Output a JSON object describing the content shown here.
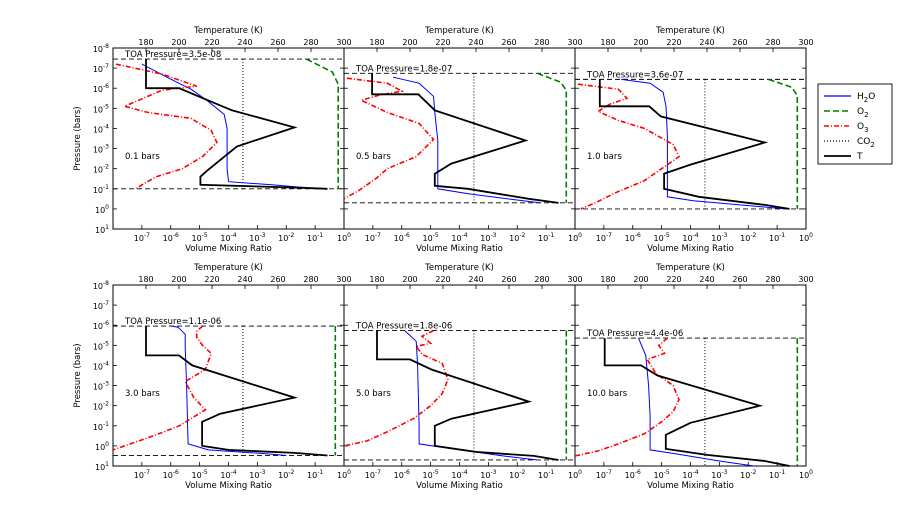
{
  "chart_data": {
    "type": "line",
    "common": {
      "ylabel": "Pressure (bars)",
      "xlabel_bottom": "Volume Mixing Ratio",
      "xlabel_top": "Temperature (K)",
      "y_axis_log": true,
      "y_axis_inverted": true,
      "ylim_log10": [
        -8,
        1
      ],
      "y_ticks": [
        {
          "base": "10",
          "exp": "-8"
        },
        {
          "base": "10",
          "exp": "-7"
        },
        {
          "base": "10",
          "exp": "-6"
        },
        {
          "base": "10",
          "exp": "-5"
        },
        {
          "base": "10",
          "exp": "-4"
        },
        {
          "base": "10",
          "exp": "-3"
        },
        {
          "base": "10",
          "exp": "-2"
        },
        {
          "base": "10",
          "exp": "-1"
        },
        {
          "base": "10",
          "exp": "0"
        },
        {
          "base": "10",
          "exp": "1"
        }
      ],
      "bottom_axis_log": true,
      "xlim_bottom_log10": [
        -8,
        0
      ],
      "x_bottom_ticks": [
        {
          "val": -7,
          "base": "10",
          "exp": "-7"
        },
        {
          "val": -6,
          "base": "10",
          "exp": "-6"
        },
        {
          "val": -5,
          "base": "10",
          "exp": "-5"
        },
        {
          "val": -4,
          "base": "10",
          "exp": "-4"
        },
        {
          "val": -3,
          "base": "10",
          "exp": "-3"
        },
        {
          "val": -2,
          "base": "10",
          "exp": "-2"
        },
        {
          "val": -1,
          "base": "10",
          "exp": "-1"
        },
        {
          "val": 0,
          "base": "10",
          "exp": "0"
        }
      ],
      "xlim_top": [
        160,
        300
      ],
      "x_top_ticks": [
        "180",
        "200",
        "220",
        "240",
        "260",
        "280",
        "300"
      ]
    },
    "legend": [
      {
        "key": "H2O",
        "label": "H",
        "sub": "2",
        "suffix": "O",
        "color": "#0000ff",
        "style": "solid"
      },
      {
        "key": "O2",
        "label": "O",
        "sub": "2",
        "suffix": "",
        "color": "#008000",
        "style": "dashed"
      },
      {
        "key": "O3",
        "label": "O",
        "sub": "3",
        "suffix": "",
        "color": "#ff0000",
        "style": "dashdot"
      },
      {
        "key": "CO2",
        "label": "CO",
        "sub": "2",
        "suffix": "",
        "color": "#000000",
        "style": "dotted"
      },
      {
        "key": "T",
        "label": "T",
        "sub": "",
        "suffix": "",
        "color": "#000000",
        "style": "solid-thick"
      }
    ],
    "panels": [
      {
        "label": "0.1 bars",
        "toa_text": "TOA Pressure=3.5e-08",
        "toa_log": -7.45,
        "surface_log": -1,
        "H2O": [
          [
            -7.0,
            -7.2
          ],
          [
            -6.0,
            -6.45
          ],
          [
            -5.3,
            -5.95
          ],
          [
            -4.75,
            -5.4
          ],
          [
            -4.15,
            -4.7
          ],
          [
            -4.05,
            -4.0
          ],
          [
            -4.05,
            -2.0
          ],
          [
            -4.0,
            -1.35
          ],
          [
            -2.5,
            -1.2
          ],
          [
            -1.3,
            -1.05
          ]
        ],
        "O2": [
          [
            -1.3,
            -7.45
          ],
          [
            -0.4,
            -6.8
          ],
          [
            -0.2,
            -6.2
          ],
          [
            -0.2,
            -1.0
          ]
        ],
        "O3": [
          [
            -7.9,
            -7.2
          ],
          [
            -6.3,
            -6.7
          ],
          [
            -5.1,
            -6.1
          ],
          [
            -6.3,
            -5.9
          ],
          [
            -7.6,
            -5.1
          ],
          [
            -6.8,
            -4.8
          ],
          [
            -5.3,
            -4.5
          ],
          [
            -4.6,
            -3.9
          ],
          [
            -4.4,
            -3.3
          ],
          [
            -4.9,
            -2.6
          ],
          [
            -5.6,
            -2.0
          ],
          [
            -6.5,
            -1.6
          ],
          [
            -7.0,
            -1.2
          ],
          [
            -7.2,
            -1.0
          ]
        ],
        "CO2": [
          -3.5,
          -7.45,
          -1.0
        ],
        "T": [
          [
            180,
            -7.45
          ],
          [
            180,
            -6.0
          ],
          [
            200,
            -6.0
          ],
          [
            232,
            -4.9
          ],
          [
            270,
            -4.05
          ],
          [
            235,
            -3.1
          ],
          [
            217,
            -1.9
          ],
          [
            213,
            -1.6
          ],
          [
            213,
            -1.2
          ],
          [
            275,
            -1.05
          ],
          [
            290,
            -1.0
          ]
        ]
      },
      {
        "label": "0.5 bars",
        "toa_text": "TOA Pressure=1.8e-07",
        "toa_log": -6.74,
        "surface_log": -0.3,
        "H2O": [
          [
            -6.3,
            -6.55
          ],
          [
            -5.4,
            -6.25
          ],
          [
            -4.9,
            -5.6
          ],
          [
            -4.85,
            -4.7
          ],
          [
            -4.75,
            -3.4
          ],
          [
            -4.75,
            -1.0
          ],
          [
            -3.7,
            -0.75
          ],
          [
            -1.8,
            -0.4
          ],
          [
            -1.2,
            -0.3
          ]
        ],
        "O2": [
          [
            -1.3,
            -6.74
          ],
          [
            -0.5,
            -6.3
          ],
          [
            -0.3,
            -5.9
          ],
          [
            -0.3,
            -0.3
          ]
        ],
        "O3": [
          [
            -7.9,
            -6.5
          ],
          [
            -6.5,
            -6.25
          ],
          [
            -6.0,
            -5.85
          ],
          [
            -6.8,
            -5.65
          ],
          [
            -7.4,
            -5.4
          ],
          [
            -6.5,
            -4.8
          ],
          [
            -5.4,
            -4.25
          ],
          [
            -4.9,
            -3.45
          ],
          [
            -5.5,
            -2.6
          ],
          [
            -6.5,
            -2.0
          ],
          [
            -6.9,
            -1.5
          ],
          [
            -7.5,
            -0.9
          ],
          [
            -8.0,
            -0.5
          ]
        ],
        "CO2": [
          -3.5,
          -6.74,
          -0.3
        ],
        "T": [
          [
            177,
            -6.74
          ],
          [
            177,
            -5.7
          ],
          [
            205,
            -5.7
          ],
          [
            215,
            -4.9
          ],
          [
            270,
            -3.4
          ],
          [
            225,
            -2.25
          ],
          [
            215,
            -1.75
          ],
          [
            215,
            -1.15
          ],
          [
            235,
            -1.0
          ],
          [
            272,
            -0.5
          ],
          [
            290,
            -0.3
          ]
        ]
      },
      {
        "label": "1.0 bars",
        "toa_text": "TOA Pressure=3.6e-07",
        "toa_log": -6.44,
        "surface_log": 0,
        "H2O": [
          [
            -6.4,
            -6.44
          ],
          [
            -5.4,
            -6.25
          ],
          [
            -4.95,
            -5.8
          ],
          [
            -4.85,
            -5.1
          ],
          [
            -4.8,
            -3.6
          ],
          [
            -4.8,
            -0.6
          ],
          [
            -3.9,
            -0.4
          ],
          [
            -1.5,
            -0.1
          ],
          [
            -0.7,
            0
          ]
        ],
        "O2": [
          [
            -1.3,
            -6.44
          ],
          [
            -0.5,
            -6.05
          ],
          [
            -0.3,
            -5.65
          ],
          [
            -0.3,
            0
          ]
        ],
        "O3": [
          [
            -7.9,
            -6.2
          ],
          [
            -6.5,
            -5.95
          ],
          [
            -6.2,
            -5.5
          ],
          [
            -6.8,
            -5.2
          ],
          [
            -7.2,
            -4.85
          ],
          [
            -6.5,
            -4.4
          ],
          [
            -5.6,
            -4.0
          ],
          [
            -4.6,
            -3.2
          ],
          [
            -4.4,
            -2.6
          ],
          [
            -5.0,
            -2.0
          ],
          [
            -5.6,
            -1.4
          ],
          [
            -6.6,
            -0.8
          ],
          [
            -7.3,
            -0.3
          ],
          [
            -7.8,
            0
          ]
        ],
        "CO2": [
          -3.5,
          -6.44,
          0
        ],
        "T": [
          [
            175,
            -6.44
          ],
          [
            175,
            -5.1
          ],
          [
            205,
            -5.1
          ],
          [
            212,
            -4.6
          ],
          [
            275,
            -3.3
          ],
          [
            230,
            -2.2
          ],
          [
            214,
            -1.75
          ],
          [
            214,
            -1.0
          ],
          [
            235,
            -0.6
          ],
          [
            275,
            -0.2
          ],
          [
            290,
            0
          ]
        ]
      },
      {
        "label": "3.0 bars",
        "toa_text": "TOA Pressure=1.1e-06",
        "toa_log": -5.96,
        "surface_log": 0.48,
        "H2O": [
          [
            -6.0,
            -5.96
          ],
          [
            -5.75,
            -5.9
          ],
          [
            -5.5,
            -5.55
          ],
          [
            -5.5,
            -4.9
          ],
          [
            -5.45,
            -3.0
          ],
          [
            -5.4,
            -0.1
          ],
          [
            -4.7,
            0.2
          ],
          [
            -2.8,
            0.38
          ],
          [
            -2.0,
            0.48
          ]
        ],
        "O2": [
          [
            -0.3,
            -5.96
          ],
          [
            -0.3,
            0.48
          ]
        ],
        "O3": [
          [
            -4.9,
            -5.96
          ],
          [
            -5.1,
            -5.7
          ],
          [
            -5.1,
            -5.4
          ],
          [
            -4.9,
            -5.0
          ],
          [
            -4.6,
            -4.6
          ],
          [
            -4.8,
            -3.8
          ],
          [
            -5.5,
            -3.2
          ],
          [
            -5.2,
            -2.4
          ],
          [
            -4.8,
            -1.8
          ],
          [
            -5.7,
            -1.0
          ],
          [
            -6.6,
            -0.5
          ],
          [
            -7.4,
            -0.1
          ],
          [
            -8.0,
            0.2
          ]
        ],
        "CO2": [
          -3.5,
          -5.96,
          0.48
        ],
        "T": [
          [
            180,
            -5.96
          ],
          [
            180,
            -4.5
          ],
          [
            200,
            -4.5
          ],
          [
            208,
            -4.0
          ],
          [
            270,
            -2.4
          ],
          [
            225,
            -1.6
          ],
          [
            214,
            -1.2
          ],
          [
            214,
            0
          ],
          [
            230,
            0.2
          ],
          [
            270,
            0.35
          ],
          [
            290,
            0.48
          ]
        ]
      },
      {
        "label": "5.0 bars",
        "toa_text": "TOA Pressure=1.8e-06",
        "toa_log": -5.74,
        "surface_log": 0.7,
        "H2O": [
          [
            -5.9,
            -5.74
          ],
          [
            -5.5,
            -5.2
          ],
          [
            -5.45,
            -4.0
          ],
          [
            -5.4,
            -1.0
          ],
          [
            -5.4,
            -0.1
          ],
          [
            -4.0,
            0.2
          ],
          [
            -2.5,
            0.5
          ],
          [
            -1.3,
            0.7
          ]
        ],
        "O2": [
          [
            -0.3,
            -5.74
          ],
          [
            -0.3,
            0.7
          ]
        ],
        "O3": [
          [
            -4.9,
            -5.74
          ],
          [
            -5.3,
            -5.45
          ],
          [
            -5.0,
            -5.1
          ],
          [
            -5.5,
            -4.95
          ],
          [
            -5.3,
            -4.55
          ],
          [
            -4.6,
            -4.1
          ],
          [
            -4.4,
            -3.3
          ],
          [
            -4.6,
            -2.6
          ],
          [
            -5.0,
            -2.0
          ],
          [
            -5.6,
            -1.35
          ],
          [
            -6.5,
            -0.7
          ],
          [
            -7.2,
            -0.25
          ],
          [
            -8.0,
            0
          ]
        ],
        "CO2": [
          -3.5,
          -5.74,
          0.7
        ],
        "T": [
          [
            180,
            -5.74
          ],
          [
            180,
            -4.3
          ],
          [
            200,
            -4.3
          ],
          [
            213,
            -3.8
          ],
          [
            272,
            -2.2
          ],
          [
            225,
            -1.35
          ],
          [
            215,
            -1.0
          ],
          [
            215,
            0
          ],
          [
            240,
            0.3
          ],
          [
            275,
            0.5
          ],
          [
            290,
            0.7
          ]
        ]
      },
      {
        "label": "10.0 bars",
        "toa_text": "TOA Pressure=4.4e-06",
        "toa_log": -5.36,
        "surface_log": 1,
        "H2O": [
          [
            -5.8,
            -5.36
          ],
          [
            -5.55,
            -4.5
          ],
          [
            -5.45,
            -3.0
          ],
          [
            -5.4,
            -1.5
          ],
          [
            -5.4,
            0.2
          ],
          [
            -4.5,
            0.4
          ],
          [
            -3.0,
            0.75
          ],
          [
            -1.8,
            1.0
          ]
        ],
        "O2": [
          [
            -0.3,
            -5.36
          ],
          [
            -0.3,
            1.0
          ]
        ],
        "O3": [
          [
            -4.8,
            -5.36
          ],
          [
            -5.1,
            -5.0
          ],
          [
            -4.9,
            -4.6
          ],
          [
            -5.5,
            -4.3
          ],
          [
            -5.2,
            -3.6
          ],
          [
            -4.6,
            -3.0
          ],
          [
            -4.4,
            -2.3
          ],
          [
            -4.6,
            -1.7
          ],
          [
            -5.0,
            -1.2
          ],
          [
            -5.6,
            -0.6
          ],
          [
            -6.5,
            -0.1
          ],
          [
            -7.2,
            0.25
          ],
          [
            -8.0,
            0.5
          ]
        ],
        "CO2": [
          -3.5,
          -5.36,
          1.0
        ],
        "T": [
          [
            178,
            -5.36
          ],
          [
            178,
            -4.0
          ],
          [
            200,
            -4.0
          ],
          [
            210,
            -3.5
          ],
          [
            272,
            -2.0
          ],
          [
            230,
            -1.15
          ],
          [
            215,
            -0.55
          ],
          [
            215,
            0.15
          ],
          [
            240,
            0.45
          ],
          [
            275,
            0.75
          ],
          [
            290,
            1.0
          ]
        ]
      }
    ]
  }
}
